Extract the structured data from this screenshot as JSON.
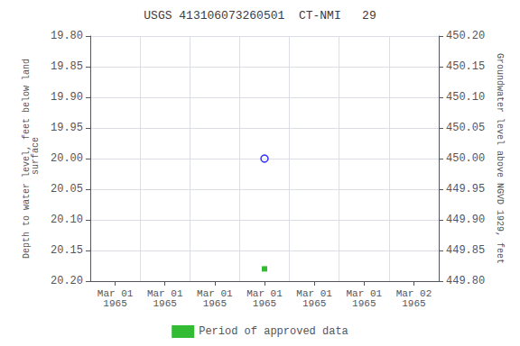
{
  "chart_data": {
    "type": "scatter",
    "title": "USGS 413106073260501  CT-NMI   29",
    "categories": [
      "Mar 01\n1965",
      "Mar 01\n1965",
      "Mar 01\n1965",
      "Mar 01\n1965",
      "Mar 01\n1965",
      "Mar 01\n1965",
      "Mar 02\n1965"
    ],
    "series": [
      {
        "color": "#0000ff",
        "marker": "open_circle",
        "values": [
          null,
          null,
          null,
          20.0,
          null,
          null,
          null
        ]
      },
      {
        "name": "Period of approved data",
        "color": "#00aa00",
        "marker": "square",
        "values": [
          null,
          null,
          null,
          20.18,
          null,
          null,
          null
        ]
      }
    ],
    "ylabel": "Depth to water level, feet below land\n surface",
    "y2label": "Groundwater level above NGVD 1929, feet",
    "ylim": [
      20.2,
      19.8
    ],
    "yticks": [
      {
        "value": 19.8,
        "label": "19.80"
      },
      {
        "value": 19.85,
        "label": "19.85"
      },
      {
        "value": 19.9,
        "label": "19.90"
      },
      {
        "value": 19.95,
        "label": "19.95"
      },
      {
        "value": 20.0,
        "label": "20.00"
      },
      {
        "value": 20.05,
        "label": "20.05"
      },
      {
        "value": 20.1,
        "label": "20.10"
      },
      {
        "value": 20.15,
        "label": "20.15"
      },
      {
        "value": 20.2,
        "label": "20.20"
      }
    ],
    "y2lim": [
      449.8,
      450.2
    ],
    "y2ticks": [
      {
        "value": 449.8,
        "label": "449.80"
      },
      {
        "value": 449.85,
        "label": "449.85"
      },
      {
        "value": 449.9,
        "label": "449.90"
      },
      {
        "value": 449.95,
        "label": "449.95"
      },
      {
        "value": 450.0,
        "label": "450.00"
      },
      {
        "value": 450.05,
        "label": "450.05"
      },
      {
        "value": 450.1,
        "label": "450.10"
      },
      {
        "value": 450.15,
        "label": "450.15"
      },
      {
        "value": 450.2,
        "label": "450.20"
      }
    ],
    "grid": true,
    "legend": "bottom"
  }
}
